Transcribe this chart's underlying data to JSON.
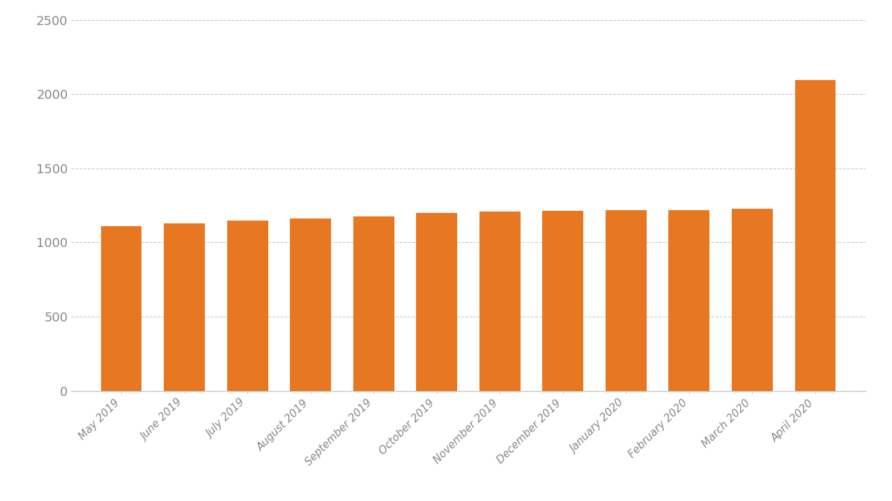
{
  "categories": [
    "May 2019",
    "June 2019",
    "July 2019",
    "August 2019",
    "September 2019",
    "October 2019",
    "November 2019",
    "December 2019",
    "January 2020",
    "February 2020",
    "March 2020",
    "April 2020"
  ],
  "values": [
    1109,
    1130,
    1148,
    1163,
    1178,
    1200,
    1210,
    1215,
    1218,
    1220,
    1228,
    2094
  ],
  "bar_color": "#E87722",
  "ylim": [
    0,
    2500
  ],
  "yticks": [
    0,
    500,
    1000,
    1500,
    2000,
    2500
  ],
  "background_color": "#ffffff",
  "grid_color": "#c8c8c8",
  "spine_color": "#c8c8c8",
  "tick_label_color": "#888888",
  "ytick_fontsize": 13,
  "xtick_fontsize": 11
}
